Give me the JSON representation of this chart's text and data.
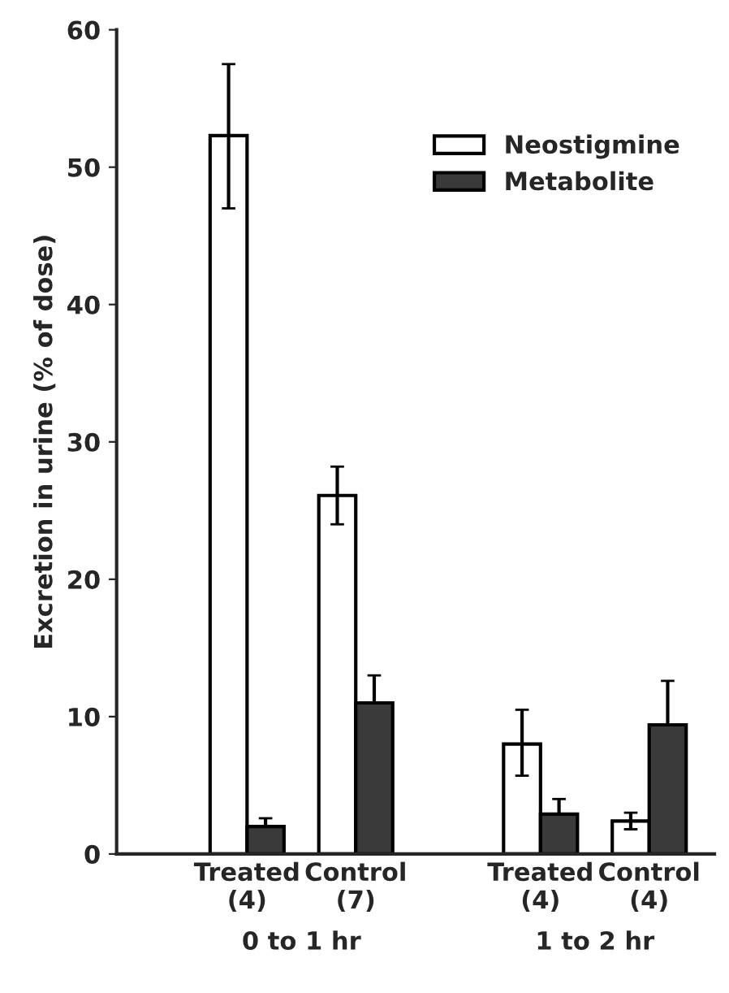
{
  "chart_data": {
    "type": "bar",
    "ylabel": "Excretion in urine (% of dose)",
    "categories": [
      "Treated\n(4)",
      "Control\n(7)",
      "Treated\n(4)",
      "Control\n(4)"
    ],
    "series": [
      {
        "name": "Neostigmine",
        "color": "#ffffff",
        "values": [
          52.3,
          26.1,
          8.0,
          2.4
        ],
        "errors": [
          [
            47.0,
            57.5
          ],
          [
            24.0,
            28.2
          ],
          [
            5.7,
            10.5
          ],
          [
            1.8,
            3.0
          ]
        ]
      },
      {
        "name": "Metabolite",
        "color": "#3a3a3a",
        "values": [
          2.0,
          11.0,
          2.9,
          9.4
        ],
        "errors": [
          [
            2.0,
            2.6
          ],
          [
            11.0,
            13.0
          ],
          [
            2.9,
            4.0
          ],
          [
            9.4,
            12.6
          ]
        ]
      }
    ],
    "annotations": [
      "0 to 1 hr",
      "1 to 2 hr"
    ],
    "ylim": [
      0,
      60
    ],
    "yticks": [
      0,
      10,
      20,
      30,
      40,
      50,
      60
    ],
    "legend": "top right",
    "grid": false
  }
}
